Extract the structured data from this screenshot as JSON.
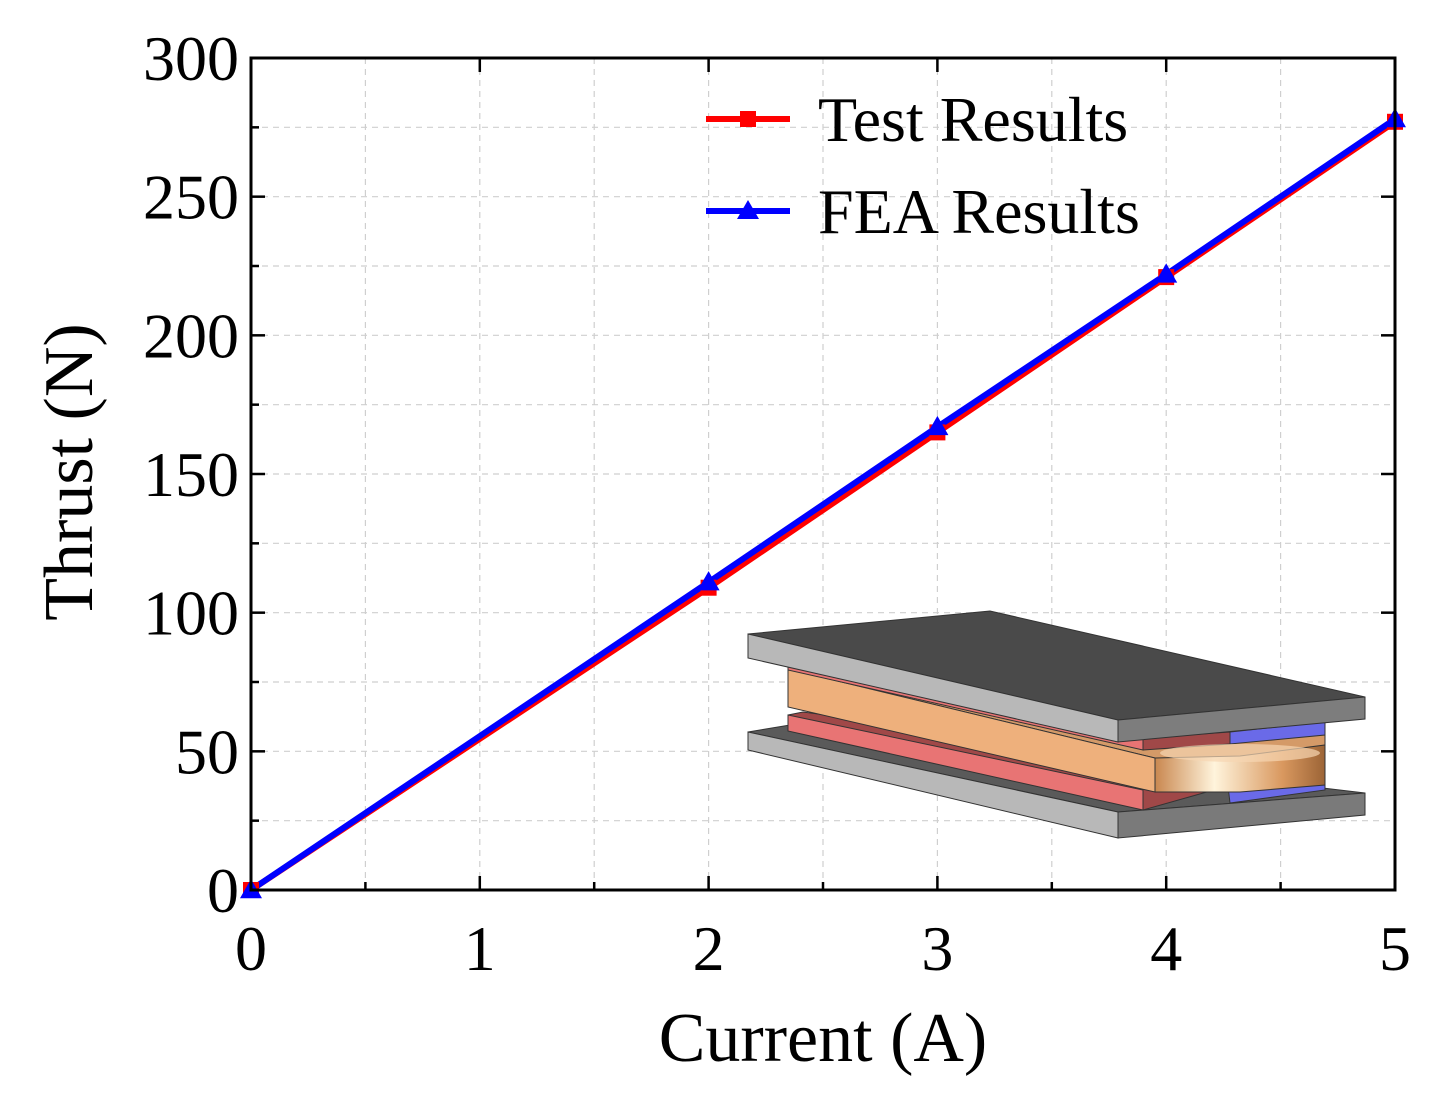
{
  "chart_data": {
    "type": "line",
    "xlabel": "Current (A)",
    "ylabel": "Thrust (N)",
    "xlim": [
      0,
      5
    ],
    "ylim": [
      0,
      300
    ],
    "x_ticks": [
      0,
      1,
      2,
      3,
      4,
      5
    ],
    "y_ticks": [
      0,
      50,
      100,
      150,
      200,
      250,
      300
    ],
    "x_tick_labels": [
      "0",
      "1",
      "2",
      "3",
      "4",
      "5"
    ],
    "y_tick_labels": [
      "0",
      "50",
      "100",
      "150",
      "200",
      "250",
      "300"
    ],
    "grid": true,
    "legend_position": "top-right",
    "series": [
      {
        "name": "Test Results",
        "color": "#ff0000",
        "marker": "square",
        "x": [
          0,
          2,
          3,
          4,
          5
        ],
        "y": [
          0,
          109,
          165,
          221,
          277
        ]
      },
      {
        "name": "FEA Results",
        "color": "#0000ff",
        "marker": "triangle",
        "x": [
          0,
          2,
          3,
          4,
          5
        ],
        "y": [
          0,
          111,
          167,
          222,
          278
        ]
      }
    ],
    "inset": {
      "description_icon": "linear-actuator-3d-model-icon",
      "colors": {
        "plate_top": "#4a4a4a",
        "plate_side": "#b8b8b8",
        "coil": "#eeb07c",
        "magnet_red": "#e87474",
        "magnet_blue": "#6a6ae8"
      }
    }
  }
}
